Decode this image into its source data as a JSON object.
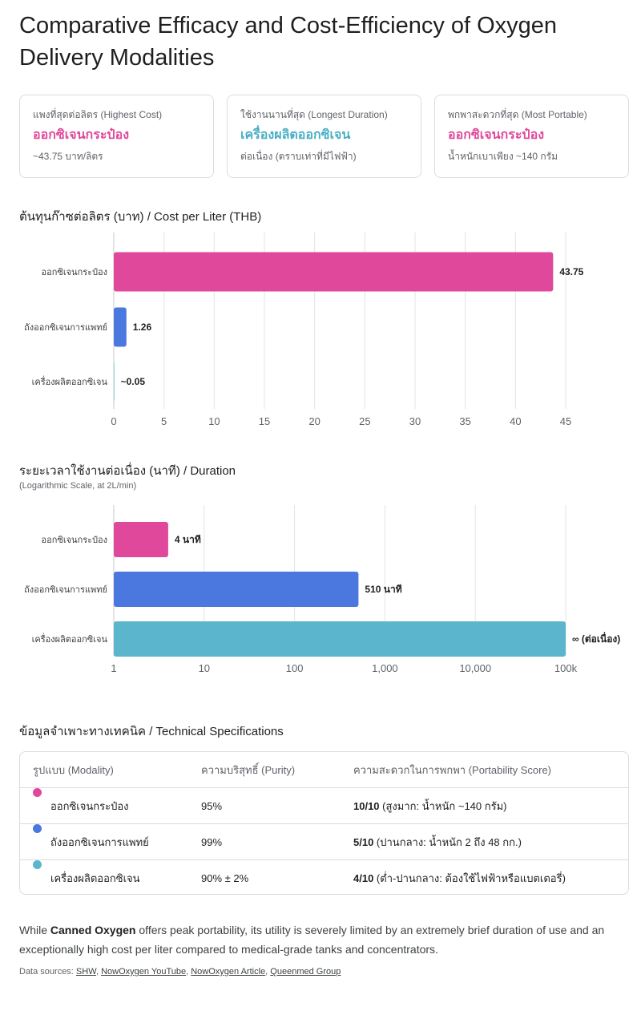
{
  "title": "Comparative Efficacy and Cost-Efficiency of Oxygen Delivery Modalities",
  "cards": [
    {
      "label": "แพงที่สุดต่อลิตร (Highest Cost)",
      "value": "ออกซิเจนกระป๋อง",
      "sub": "~43.75 บาท/ลิตร",
      "color": "#e0489c"
    },
    {
      "label": "ใช้งานนานที่สุด (Longest Duration)",
      "value": "เครื่องผลิตออกซิเจน",
      "sub": "ต่อเนื่อง (ตราบเท่าที่มีไฟฟ้า)",
      "color": "#4aafc6"
    },
    {
      "label": "พกพาสะดวกที่สุด (Most Portable)",
      "value": "ออกซิเจนกระป๋อง",
      "sub": "น้ำหนักเบาเพียง ~140 กรัม",
      "color": "#e0489c"
    }
  ],
  "chart_data": [
    {
      "type": "bar",
      "orientation": "horizontal",
      "title": "ต้นทุนก๊าซต่อลิตร (บาท) / Cost per Liter (THB)",
      "categories": [
        "ออกซิเจนกระป๋อง",
        "ถังออกซิเจนการแพทย์",
        "เครื่องผลิตออกซิเจน"
      ],
      "values": [
        43.75,
        1.26,
        0.05
      ],
      "value_labels": [
        "43.75",
        "1.26",
        "~0.05"
      ],
      "colors": [
        "#e0489c",
        "#4a78df",
        "#5bb5cc"
      ],
      "xlim": [
        0,
        45
      ],
      "ticks": [
        0,
        5,
        10,
        15,
        20,
        25,
        30,
        35,
        40,
        45
      ],
      "tick_labels": [
        "0",
        "5",
        "10",
        "15",
        "20",
        "25",
        "30",
        "35",
        "40",
        "45"
      ],
      "grid": true
    },
    {
      "type": "bar",
      "orientation": "horizontal",
      "scale": "log",
      "title": "ระยะเวลาใช้งานต่อเนื่อง (นาที) / Duration",
      "subtitle": "(Logarithmic Scale, at 2L/min)",
      "categories": [
        "ออกซิเจนกระป๋อง",
        "ถังออกซิเจนการแพทย์",
        "เครื่องผลิตออกซิเจน"
      ],
      "values": [
        4,
        510,
        100000
      ],
      "value_labels": [
        "4 นาที",
        "510 นาที",
        "∞ (ต่อเนื่อง)"
      ],
      "colors": [
        "#e0489c",
        "#4a78df",
        "#5bb5cc"
      ],
      "xlim": [
        1,
        100000
      ],
      "ticks": [
        1,
        10,
        100,
        1000,
        10000,
        100000
      ],
      "tick_labels": [
        "1",
        "10",
        "100",
        "1,000",
        "10,000",
        "100k"
      ],
      "grid": true
    }
  ],
  "table": {
    "title": "ข้อมูลจำเพาะทางเทคนิค / Technical Specifications",
    "headers": [
      "รูปแบบ (Modality)",
      "ความบริสุทธิ์ (Purity)",
      "ความสะดวกในการพกพา (Portability Score)"
    ],
    "rows": [
      {
        "color": "#e0489c",
        "name": "ออกซิเจนกระป๋อง",
        "purity": "95%",
        "score": "10/10",
        "note": " (สูงมาก: น้ำหนัก ~140 กรัม)"
      },
      {
        "color": "#4a78df",
        "name": "ถังออกซิเจนการแพทย์",
        "purity": "99%",
        "score": "5/10",
        "note": " (ปานกลาง: น้ำหนัก 2 ถึง 48 กก.)"
      },
      {
        "color": "#5bb5cc",
        "name": "เครื่องผลิตออกซิเจน",
        "purity": "90% ± 2%",
        "score": "4/10",
        "note": " (ต่ำ-ปานกลาง: ต้องใช้ไฟฟ้าหรือแบตเตอรี่)"
      }
    ]
  },
  "summary": {
    "pre": "While ",
    "bold": "Canned Oxygen",
    "post": " offers peak portability, its utility is severely limited by an extremely brief duration of use and an exceptionally high cost per liter compared to medical-grade tanks and concentrators."
  },
  "sources": {
    "label": "Data sources: ",
    "links": [
      "SHW",
      "NowOxygen YouTube",
      "NowOxygen Article",
      "Queenmed Group"
    ]
  }
}
